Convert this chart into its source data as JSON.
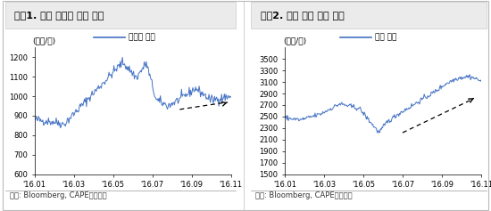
{
  "chart1": {
    "title": "그림1. 국제 대두유 가격 추이",
    "ylabel": "(달러/톤)",
    "legend": "대두유 가격",
    "ylim": [
      600,
      1250
    ],
    "yticks": [
      600,
      700,
      800,
      900,
      1000,
      1100,
      1200
    ],
    "xticks": [
      "'16.01",
      "'16.03",
      "'16.05",
      "'16.07",
      "'16.09",
      "'16.11"
    ],
    "source": "자료: Bloomberg, CAPE투자증권"
  },
  "chart2": {
    "title": "그림2. 국제 팜유 가격 추이",
    "ylabel": "(달러/톤)",
    "legend": "팜유 가격",
    "ylim": [
      1500,
      3700
    ],
    "yticks": [
      1500,
      1700,
      1900,
      2100,
      2300,
      2500,
      2700,
      2900,
      3100,
      3300,
      3500
    ],
    "xticks": [
      "'16.01",
      "'16.03",
      "'16.05",
      "'16.07",
      "'16.09",
      "'16.11"
    ],
    "source": "자료: Bloomberg, CAPE투자증권"
  },
  "line_color": "#4472C4",
  "background_color": "#ffffff",
  "title_bg_color": "#ebebeb",
  "title_fontsize": 8,
  "label_fontsize": 6.5,
  "tick_fontsize": 6,
  "source_fontsize": 6
}
